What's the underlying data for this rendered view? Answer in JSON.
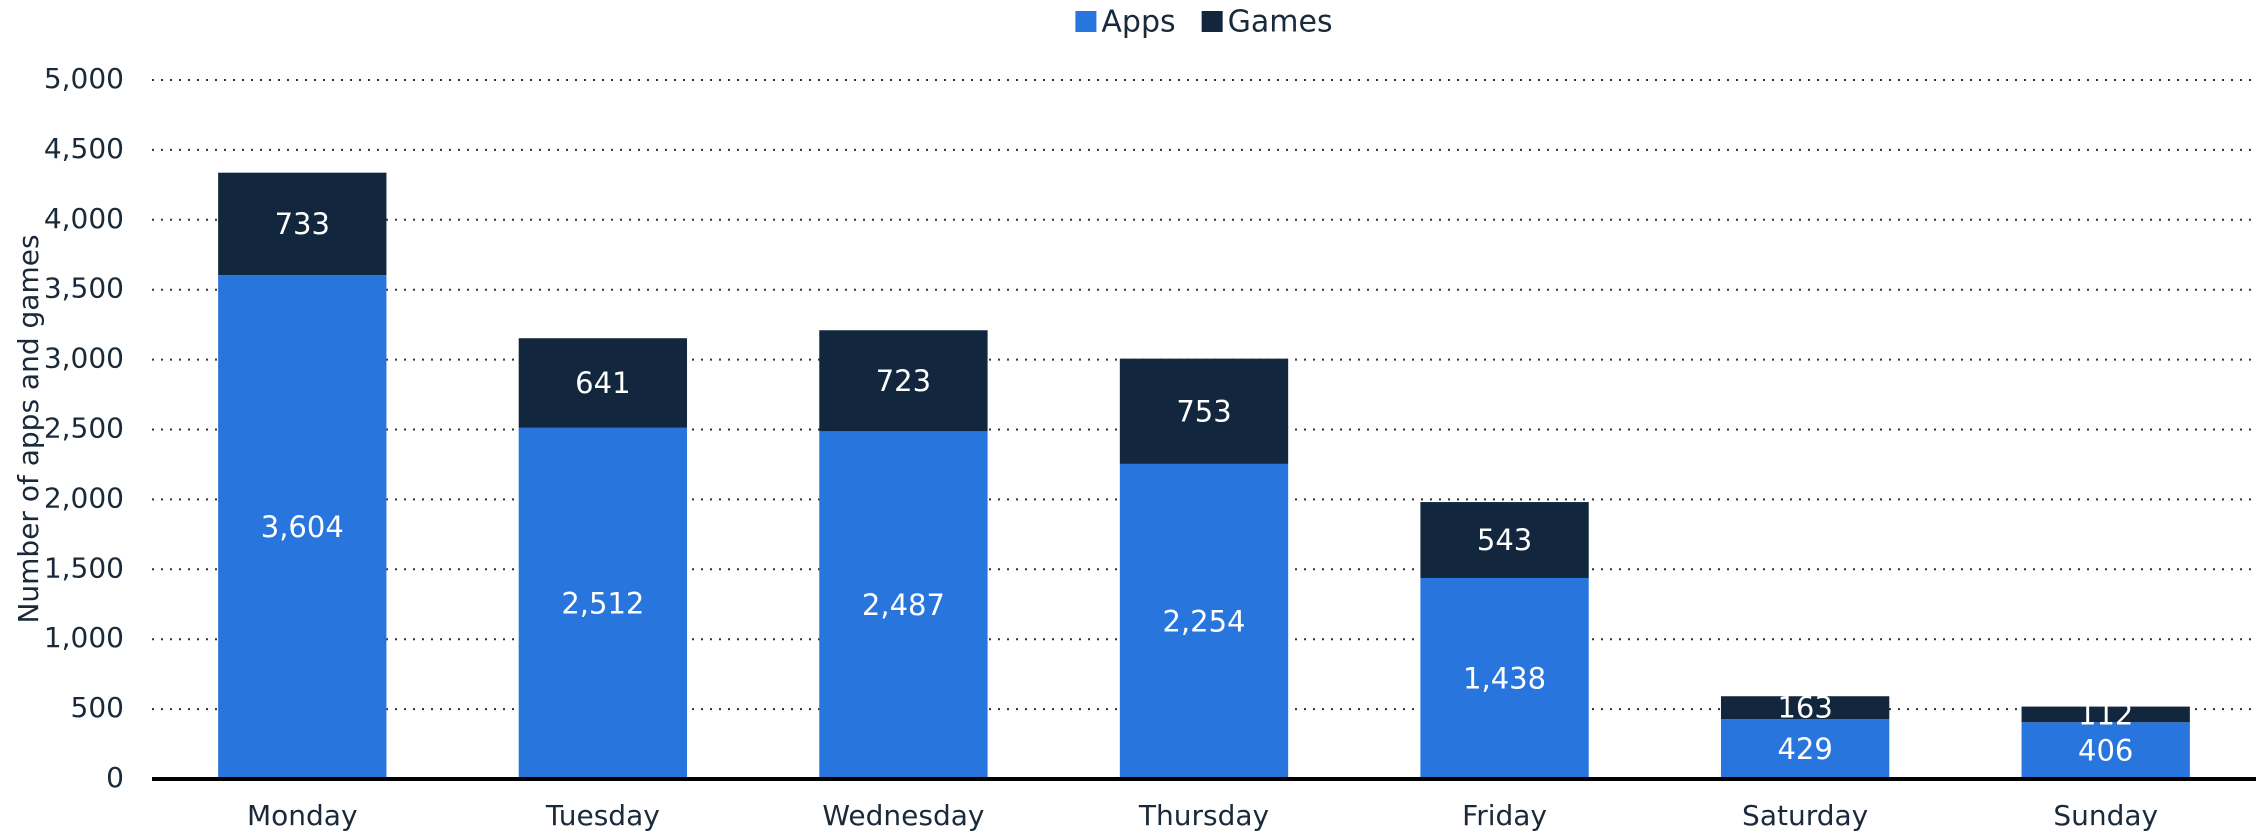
{
  "chart_data": {
    "type": "stacked_bar",
    "y_label": "Number of apps and games",
    "categories": [
      "Monday",
      "Tuesday",
      "Wednesday",
      "Thursday",
      "Friday",
      "Saturday",
      "Sunday"
    ],
    "series": [
      {
        "name": "Apps",
        "color": "#2876dd",
        "values": [
          3604,
          2512,
          2487,
          2254,
          1438,
          429,
          406
        ],
        "value_labels": [
          "3,604",
          "2,512",
          "2,487",
          "2,254",
          "1,438",
          "429",
          "406"
        ]
      },
      {
        "name": "Games",
        "color": "#12263d",
        "values": [
          733,
          641,
          723,
          753,
          543,
          163,
          112
        ],
        "value_labels": [
          "733",
          "641",
          "723",
          "753",
          "543",
          "163",
          "112"
        ]
      }
    ],
    "ylim": [
      0,
      5000
    ],
    "yticks": [
      0,
      500,
      {
        "value": 1000,
        "label": "1,000"
      },
      {
        "value": 1500,
        "label": "1,500"
      },
      {
        "value": 2000,
        "label": "2,000"
      },
      {
        "value": 2500,
        "label": "2,500"
      },
      {
        "value": 3000,
        "label": "3,000"
      },
      {
        "value": 3500,
        "label": "3,500"
      },
      {
        "value": 4000,
        "label": "4,000"
      },
      {
        "value": 4500,
        "label": "4,500"
      },
      {
        "value": 5000,
        "label": "5,000"
      }
    ],
    "grid": true,
    "legend": "top"
  }
}
